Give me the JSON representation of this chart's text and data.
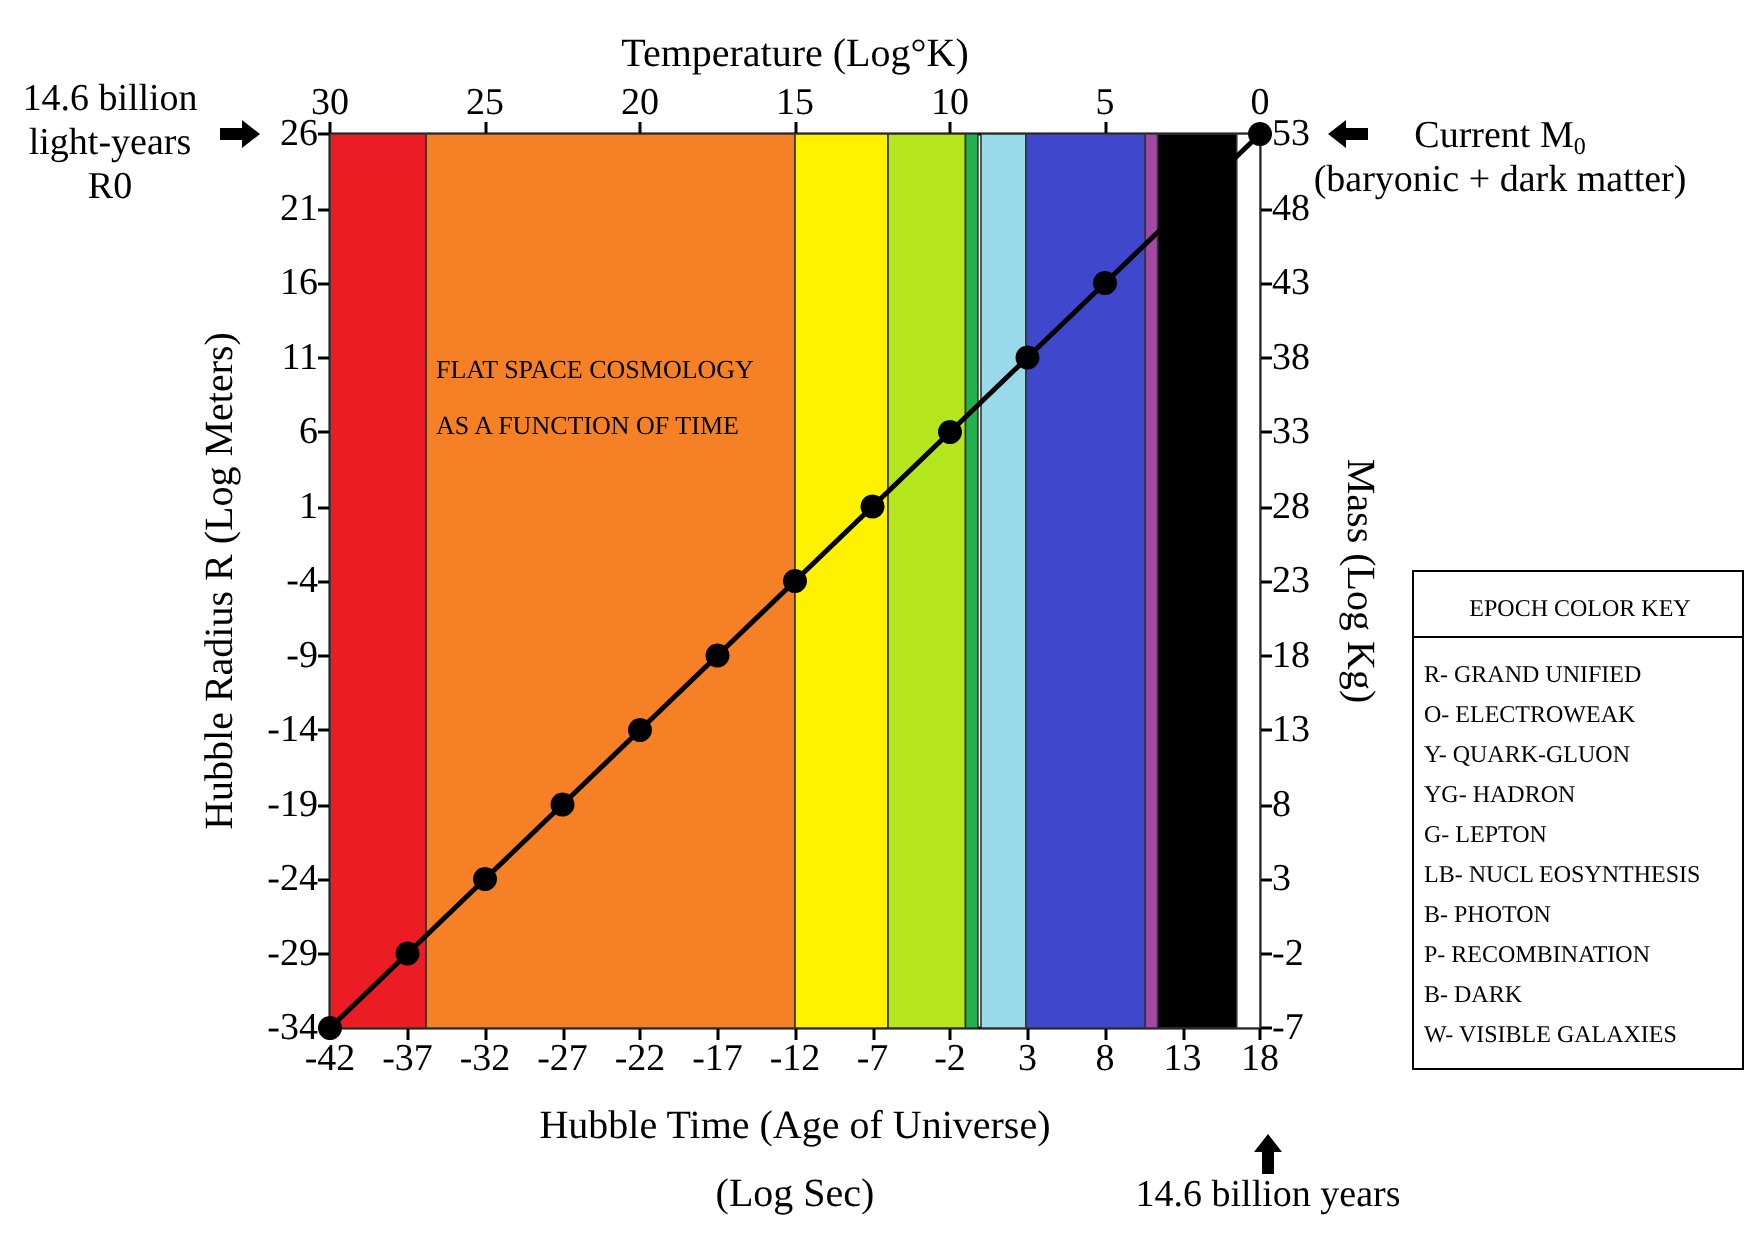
{
  "chart_data": {
    "type": "line",
    "x": [
      -42,
      -37,
      -32,
      -27,
      -22,
      -17,
      -12,
      -7,
      -2,
      3,
      8,
      18
    ],
    "series": [
      {
        "color": "#000000",
        "values": [
          -34,
          -29,
          -24,
          -19,
          -14,
          -9,
          -4,
          1,
          6,
          11,
          16,
          26
        ]
      }
    ],
    "xlabel": "Hubble Time (Age of Universe)\n(Log Sec)",
    "ylabel": "Hubble Radius R (Log Meters)",
    "y2label": "Mass (Log Kg)",
    "x2label": "Temperature (Log°K)",
    "xlim": [
      -42,
      18
    ],
    "xticks": [
      -42,
      -37,
      -32,
      -27,
      -22,
      -17,
      -12,
      -7,
      -2,
      3,
      8,
      13,
      18
    ],
    "ylim": [
      -34,
      26
    ],
    "yticks": [
      -34,
      -29,
      -24,
      -19,
      -14,
      -9,
      -4,
      1,
      6,
      11,
      16,
      21,
      26
    ],
    "y2lim": [
      -7,
      53
    ],
    "y2ticks": [
      -7,
      -2,
      3,
      8,
      13,
      18,
      23,
      28,
      33,
      38,
      43,
      48,
      53
    ],
    "x2lim": [
      30,
      0
    ],
    "x2ticks": [
      30,
      25,
      20,
      15,
      10,
      5,
      0
    ],
    "grid": false,
    "marker": "circle",
    "line_style": "solid",
    "bands": [
      {
        "axis": "x",
        "from": -42,
        "to": -35.8,
        "color": "#ec1c24"
      },
      {
        "axis": "x",
        "from": -35.8,
        "to": -12,
        "color": "#f68026"
      },
      {
        "axis": "x",
        "from": -12,
        "to": -6,
        "color": "#fff200"
      },
      {
        "axis": "x",
        "from": -6,
        "to": -1,
        "color": "#b5e51d"
      },
      {
        "axis": "x",
        "from": -1,
        "to": -0.2,
        "color": "#22b14c"
      },
      {
        "axis": "x",
        "from": 0,
        "to": 2.9,
        "color": "#99d9ea"
      },
      {
        "axis": "x",
        "from": 2.9,
        "to": 10.6,
        "color": "#3f48cc"
      },
      {
        "axis": "x",
        "from": 10.6,
        "to": 11.4,
        "color": "#a349a4"
      },
      {
        "axis": "x",
        "from": 11.4,
        "to": 16.5,
        "color": "#000000"
      },
      {
        "axis": "x",
        "from": 16.5,
        "to": 18,
        "color": "#ffffff"
      }
    ],
    "annotations": [
      "FLAT SPACE COSMOLOGY\nAS A FUNCTION OF TIME",
      "14.6 billion\nlight-years\nR0",
      "Current M$_{0}$\n(baryonic + dark matter)",
      "14.6 billion years",
      "EPOCH COLOR KEY",
      "R- GRAND UNIFIED",
      "O- ELECTROWEAK",
      "Y- QUARK-GLUON",
      "YG- HADRON",
      "G- LEPTON",
      "LB- NUCL EOSYNTHESIS",
      "B- PHOTON",
      "P- RECOMBINATION",
      "B- DARK",
      "W- VISIBLE GALAXIES"
    ]
  }
}
